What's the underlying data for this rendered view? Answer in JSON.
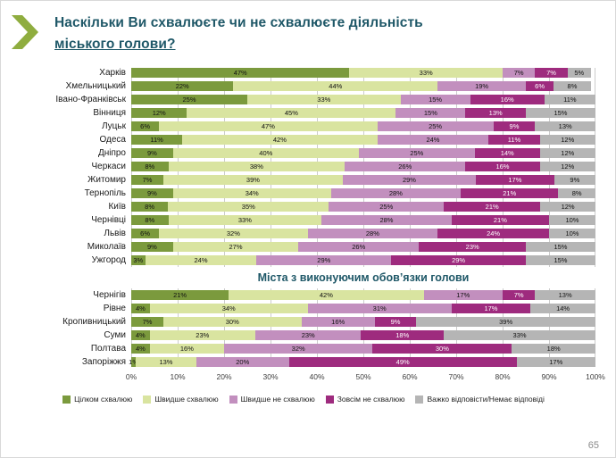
{
  "header": {
    "title_line1": "Наскільки Ви схвалюєте чи не схвалюєте діяльність",
    "title_line2": "міського голови?"
  },
  "page_number": "65",
  "chart_data": {
    "type": "bar",
    "stacked": true,
    "orientation": "horizontal",
    "x_axis": {
      "min": 0,
      "max": 100,
      "ticks": [
        "0%",
        "10%",
        "20%",
        "30%",
        "40%",
        "50%",
        "60%",
        "70%",
        "80%",
        "90%",
        "100%"
      ]
    },
    "legend": [
      {
        "label": "Цілком схвалюю",
        "color": "#7b9a3d",
        "text_white": false
      },
      {
        "label": "Швидше схвалюю",
        "color": "#d9e4a0",
        "text_white": false
      },
      {
        "label": "Швидше не схвалюю",
        "color": "#c28fbe",
        "text_white": false
      },
      {
        "label": "Зовсім не схвалюю",
        "color": "#9e2b7e",
        "text_white": true
      },
      {
        "label": "Важко відповісти/Немає відповіді",
        "color": "#b5b5b5",
        "text_white": false
      }
    ],
    "groups": [
      {
        "title": "",
        "rows": [
          {
            "label": "Харків",
            "values": [
              47,
              33,
              7,
              7,
              5
            ]
          },
          {
            "label": "Хмельницький",
            "values": [
              22,
              44,
              19,
              6,
              8
            ]
          },
          {
            "label": "Івано-Франківськ",
            "values": [
              25,
              33,
              15,
              16,
              11
            ]
          },
          {
            "label": "Вінниця",
            "values": [
              12,
              45,
              15,
              13,
              15
            ]
          },
          {
            "label": "Луцьк",
            "values": [
              6,
              47,
              25,
              9,
              13
            ]
          },
          {
            "label": "Одеса",
            "values": [
              11,
              42,
              24,
              11,
              12
            ]
          },
          {
            "label": "Дніпро",
            "values": [
              9,
              40,
              25,
              14,
              12
            ]
          },
          {
            "label": "Черкаси",
            "values": [
              8,
              38,
              26,
              16,
              12
            ]
          },
          {
            "label": "Житомир",
            "values": [
              7,
              39,
              29,
              17,
              9
            ]
          },
          {
            "label": "Тернопіль",
            "values": [
              9,
              34,
              28,
              21,
              8
            ]
          },
          {
            "label": "Київ",
            "values": [
              8,
              35,
              25,
              21,
              12
            ]
          },
          {
            "label": "Чернівці",
            "values": [
              8,
              33,
              28,
              21,
              10
            ]
          },
          {
            "label": "Львів",
            "values": [
              6,
              32,
              28,
              24,
              10
            ]
          },
          {
            "label": "Миколаїв",
            "values": [
              9,
              27,
              26,
              23,
              15
            ]
          },
          {
            "label": "Ужгород",
            "values": [
              3,
              24,
              29,
              29,
              15
            ]
          }
        ]
      },
      {
        "title": "Міста з виконуючим обов’язки голови",
        "rows": [
          {
            "label": "Чернігів",
            "values": [
              21,
              42,
              17,
              7,
              13
            ]
          },
          {
            "label": "Рівне",
            "values": [
              4,
              34,
              31,
              17,
              14
            ]
          },
          {
            "label": "Кропивницький",
            "values": [
              7,
              30,
              16,
              9,
              39
            ]
          },
          {
            "label": "Суми",
            "values": [
              4,
              23,
              23,
              18,
              33
            ]
          },
          {
            "label": "Полтава",
            "values": [
              4,
              16,
              32,
              30,
              18
            ]
          },
          {
            "label": "Запоріжжя",
            "values": [
              1,
              13,
              20,
              49,
              17
            ]
          }
        ]
      }
    ]
  }
}
